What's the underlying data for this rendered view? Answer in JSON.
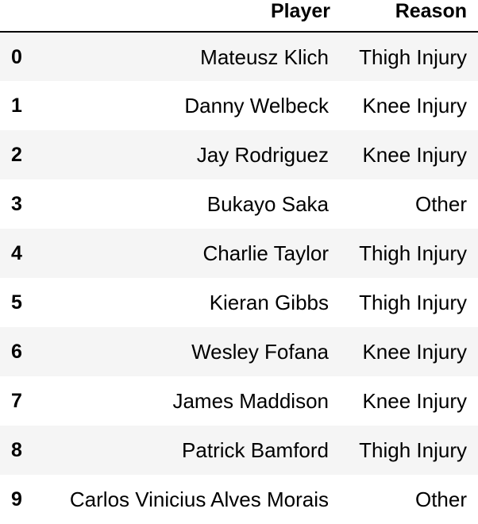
{
  "table": {
    "columns": {
      "index": "",
      "player": "Player",
      "reason": "Reason"
    },
    "rows": [
      {
        "index": "0",
        "player": "Mateusz Klich",
        "reason": "Thigh Injury"
      },
      {
        "index": "1",
        "player": "Danny Welbeck",
        "reason": "Knee Injury"
      },
      {
        "index": "2",
        "player": "Jay Rodriguez",
        "reason": "Knee Injury"
      },
      {
        "index": "3",
        "player": "Bukayo Saka",
        "reason": "Other"
      },
      {
        "index": "4",
        "player": "Charlie Taylor",
        "reason": "Thigh Injury"
      },
      {
        "index": "5",
        "player": "Kieran Gibbs",
        "reason": "Thigh Injury"
      },
      {
        "index": "6",
        "player": "Wesley Fofana",
        "reason": "Knee Injury"
      },
      {
        "index": "7",
        "player": "James Maddison",
        "reason": "Knee Injury"
      },
      {
        "index": "8",
        "player": "Patrick Bamford",
        "reason": "Thigh Injury"
      },
      {
        "index": "9",
        "player": "Carlos Vinicius Alves Morais",
        "reason": "Other"
      }
    ]
  }
}
